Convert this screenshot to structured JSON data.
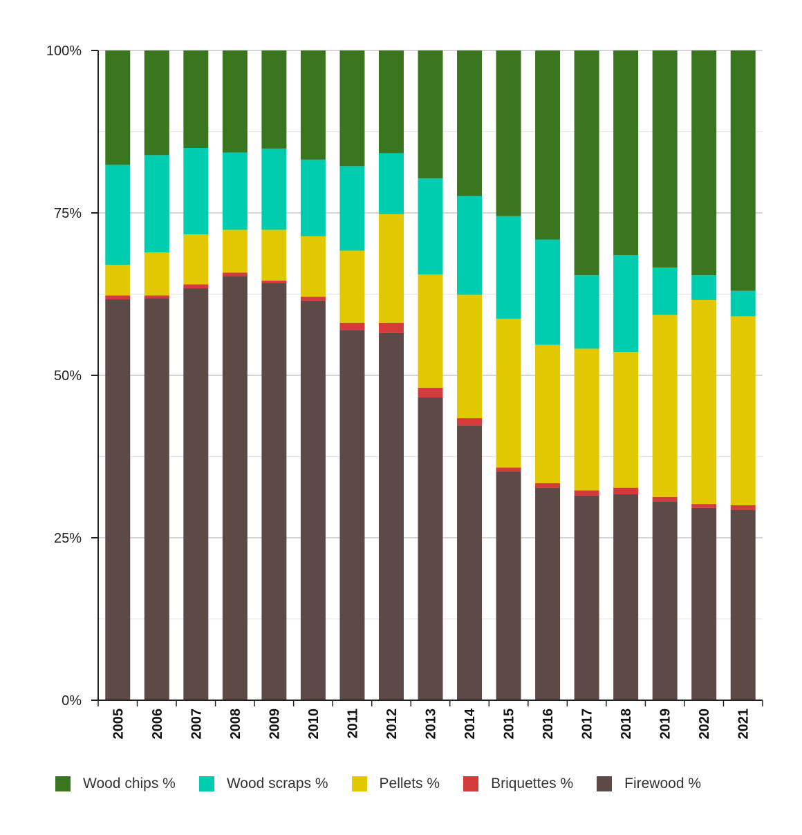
{
  "chart_data": {
    "type": "bar",
    "stacked": true,
    "title": "",
    "xlabel": "",
    "ylabel": "",
    "ylim": [
      0,
      100
    ],
    "yticks": [
      "0%",
      "25%",
      "50%",
      "75%",
      "100%"
    ],
    "categories": [
      "2005",
      "2006",
      "2007",
      "2008",
      "2009",
      "2010",
      "2011",
      "2012",
      "2013",
      "2014",
      "2015",
      "2016",
      "2017",
      "2018",
      "2019",
      "2020",
      "2021"
    ],
    "series": [
      {
        "name": "Firewood %",
        "color": "#5d4a47",
        "values": [
          61.7,
          61.9,
          63.4,
          65.3,
          64.2,
          61.5,
          57.0,
          56.5,
          46.6,
          42.3,
          35.2,
          32.7,
          31.5,
          31.7,
          30.6,
          29.6,
          29.3
        ]
      },
      {
        "name": "Briquettes %",
        "color": "#d63b3b",
        "values": [
          0.6,
          0.4,
          0.6,
          0.5,
          0.4,
          0.6,
          1.1,
          1.6,
          1.5,
          1.1,
          0.6,
          0.7,
          0.8,
          1.0,
          0.7,
          0.6,
          0.7
        ]
      },
      {
        "name": "Pellets %",
        "color": "#e2c800",
        "values": [
          4.7,
          6.6,
          7.7,
          6.6,
          7.8,
          9.3,
          11.1,
          16.7,
          17.4,
          19.0,
          22.9,
          21.3,
          21.8,
          20.9,
          28.0,
          31.4,
          29.1
        ]
      },
      {
        "name": "Wood scraps %",
        "color": "#00cdb0",
        "values": [
          15.4,
          15.0,
          13.3,
          11.9,
          12.5,
          11.8,
          13.0,
          9.4,
          14.8,
          15.2,
          15.8,
          16.2,
          11.3,
          14.9,
          7.3,
          3.8,
          3.9
        ]
      },
      {
        "name": "Wood chips %",
        "color": "#3a7520",
        "values": [
          17.6,
          16.1,
          15.0,
          15.7,
          15.1,
          16.8,
          17.8,
          15.8,
          19.7,
          22.4,
          25.5,
          29.1,
          34.6,
          31.5,
          33.4,
          34.6,
          37.0
        ]
      }
    ],
    "legend": {
      "position": "bottom",
      "order": [
        "Wood chips %",
        "Wood scraps %",
        "Pellets %",
        "Briquettes %",
        "Firewood %"
      ]
    }
  }
}
